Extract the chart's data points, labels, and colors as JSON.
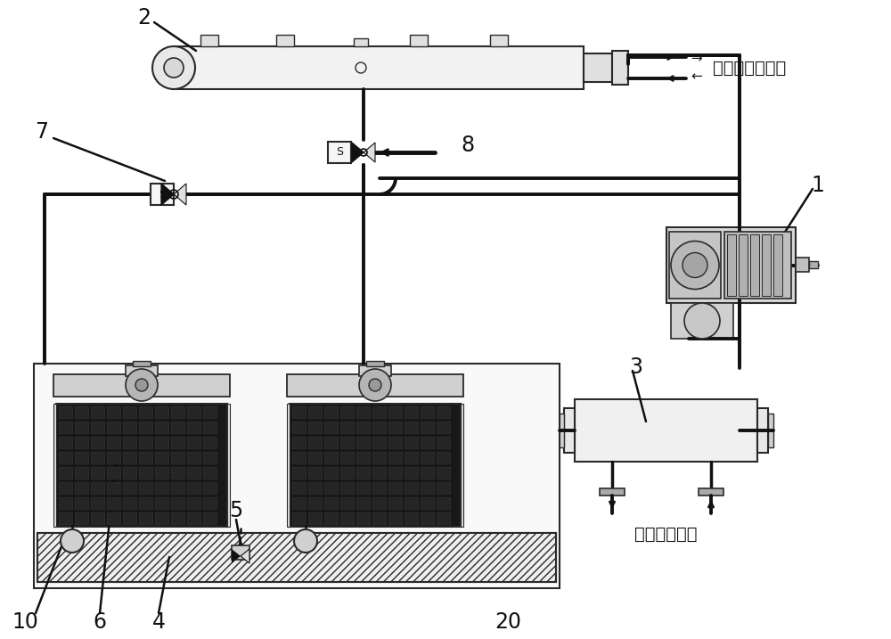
{
  "bg_color": "#ffffff",
  "lc": "#2a2a2a",
  "dc": "#111111",
  "g1": "#e8e8e8",
  "g2": "#d0d0d0",
  "g3": "#aaaaaa",
  "dark_fill": "#1a1a1a",
  "text_hot_water": "生活热水进出口",
  "text_cold_water": "冷冻水进出口",
  "font_size": 14,
  "label_font_size": 17,
  "pipe_lw": 2.5,
  "comp_lw": 1.5
}
